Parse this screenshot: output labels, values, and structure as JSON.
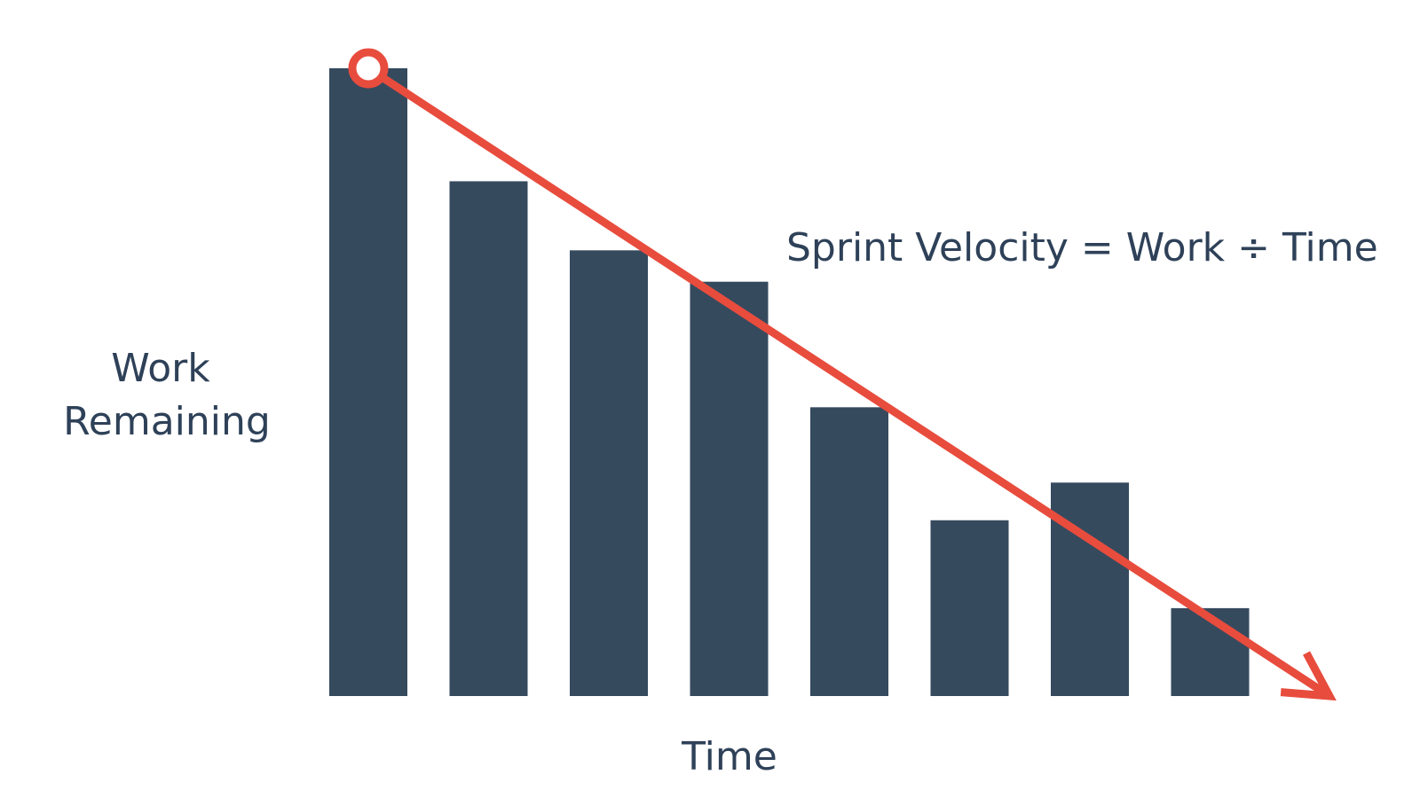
{
  "chart_data": {
    "type": "bar",
    "ylabel": "Work Remaining",
    "xlabel": "Time",
    "annotation": "Sprint Velocity = Work ÷ Time",
    "categories": [
      null,
      null,
      null,
      null,
      null,
      null,
      null,
      null
    ],
    "values": [
      100,
      82,
      71,
      66,
      46,
      28,
      34,
      14
    ],
    "color": "#364a5e",
    "trend_color": "#e84c3d",
    "ylim": [
      0,
      100
    ]
  }
}
